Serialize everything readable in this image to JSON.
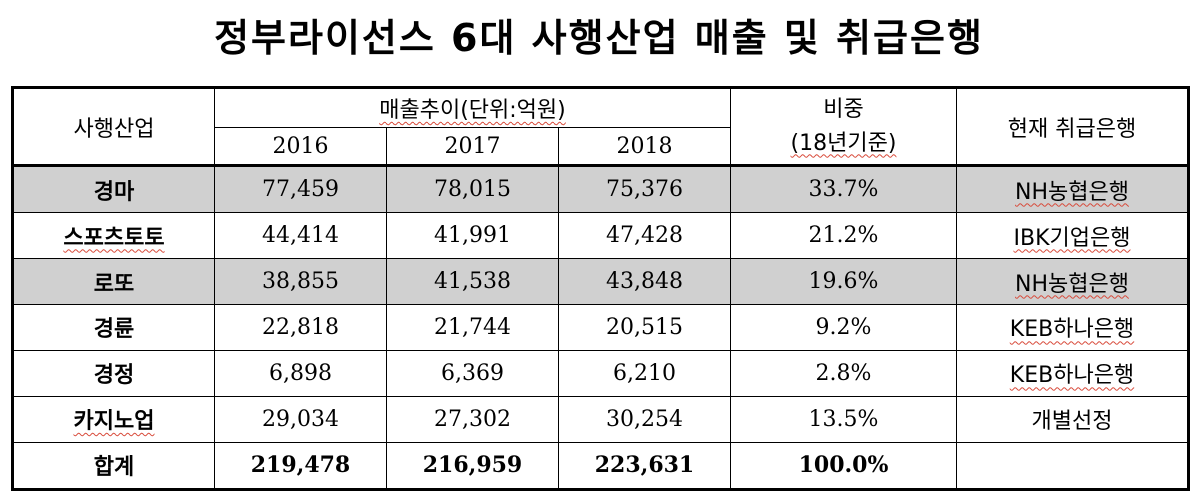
{
  "title": "정부라이선스 6대 사행산업 매출 및 취급은행",
  "table": {
    "headers": {
      "industry": "사행산업",
      "sales_trend": "매출추이(단위:억원)",
      "years": [
        "2016",
        "2017",
        "2018"
      ],
      "share_line1": "비중",
      "share_line2": "(18년기준)",
      "bank": "현재 취급은행"
    },
    "rows": [
      {
        "name": "경마",
        "v2016": "77,459",
        "v2017": "78,015",
        "v2018": "75,376",
        "share": "33.7%",
        "bank": "NH농협은행"
      },
      {
        "name": "스포츠토토",
        "v2016": "44,414",
        "v2017": "41,991",
        "v2018": "47,428",
        "share": "21.2%",
        "bank": "IBK기업은행"
      },
      {
        "name": "로또",
        "v2016": "38,855",
        "v2017": "41,538",
        "v2018": "43,848",
        "share": "19.6%",
        "bank": "NH농협은행"
      },
      {
        "name": "경륜",
        "v2016": "22,818",
        "v2017": "21,744",
        "v2018": "20,515",
        "share": "9.2%",
        "bank": "KEB하나은행"
      },
      {
        "name": "경정",
        "v2016": "6,898",
        "v2017": "6,369",
        "v2018": "6,210",
        "share": "2.8%",
        "bank": "KEB하나은행"
      },
      {
        "name": "카지노업",
        "v2016": "29,034",
        "v2017": "27,302",
        "v2018": "30,254",
        "share": "13.5%",
        "bank": "개별선정"
      }
    ],
    "total": {
      "name": "합계",
      "v2016": "219,478",
      "v2017": "216,959",
      "v2018": "223,631",
      "share": "100.0%",
      "bank": ""
    }
  }
}
